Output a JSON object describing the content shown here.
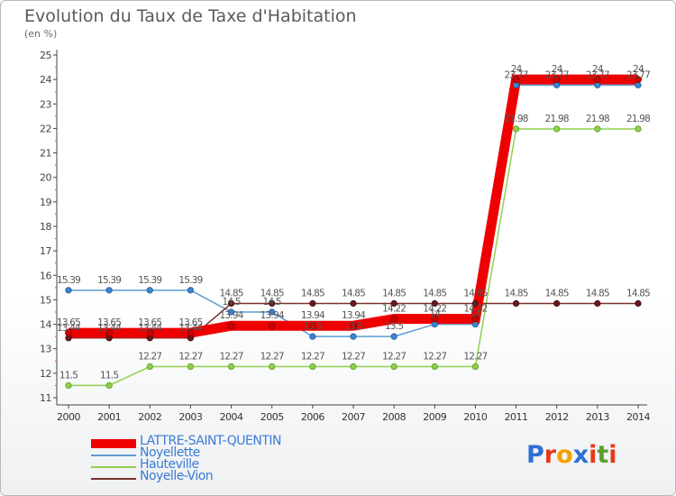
{
  "title": "Evolution du Taux de Taxe d'Habitation",
  "unit": "(en %)",
  "chart_data": {
    "type": "line",
    "title": "Evolution du Taux de Taxe d'Habitation",
    "ylabel": "(en %)",
    "xlabel": "",
    "ylim": [
      11,
      25
    ],
    "yticks": [
      11,
      12,
      13,
      14,
      15,
      16,
      17,
      18,
      19,
      20,
      21,
      22,
      23,
      24,
      25
    ],
    "grid": false,
    "legend_position": "bottom-left",
    "x": [
      "2000",
      "2001",
      "2002",
      "2003",
      "2004",
      "2005",
      "2006",
      "2007",
      "2008",
      "2009",
      "2010",
      "2011",
      "2012",
      "2013",
      "2014"
    ],
    "series": [
      {
        "name": "LATTRE-SAINT-QUENTIN",
        "color": "#ee0000",
        "values": [
          13.65,
          13.65,
          13.65,
          13.65,
          13.94,
          13.94,
          13.94,
          13.94,
          14.22,
          14.22,
          14.22,
          24,
          24,
          24,
          24
        ],
        "labels": [
          "13.65",
          "13.65",
          "13.65",
          "13.65",
          "13.94",
          "13.94",
          "13.94",
          "13.94",
          "14.22",
          "14.22",
          "14.22",
          "24",
          "24",
          "24",
          "24"
        ]
      },
      {
        "name": "Noyellette",
        "color": "#5b9bd5",
        "values": [
          15.39,
          15.39,
          15.39,
          15.39,
          14.5,
          14.5,
          13.5,
          13.5,
          13.5,
          14,
          14,
          23.77,
          23.77,
          23.77,
          23.77
        ],
        "labels": [
          "15.39",
          "15.39",
          "15.39",
          "15.39",
          "14.5",
          "14.5",
          "13.5",
          "13.5",
          "13.5",
          "14",
          "14",
          "23.77",
          "23.77",
          "23.77",
          "23.77"
        ]
      },
      {
        "name": "Hauteville",
        "color": "#92d050",
        "values": [
          11.5,
          11.5,
          12.27,
          12.27,
          12.27,
          12.27,
          12.27,
          12.27,
          12.27,
          12.27,
          12.27,
          21.98,
          21.98,
          21.98,
          21.98
        ],
        "labels": [
          "11.5",
          "11.5",
          "12.27",
          "12.27",
          "12.27",
          "12.27",
          "12.27",
          "12.27",
          "12.27",
          "12.27",
          "12.27",
          "21.98",
          "21.98",
          "21.98",
          "21.98"
        ]
      },
      {
        "name": "Noyelle-Vion",
        "color": "#7b3030",
        "values": [
          13.44,
          13.44,
          13.44,
          13.44,
          14.85,
          14.85,
          14.85,
          14.85,
          14.85,
          14.85,
          14.85,
          14.85,
          14.85,
          14.85,
          14.85
        ],
        "labels": [
          "13.44",
          "13.44",
          "13.44",
          "13.44",
          "14.85",
          "14.85",
          "14.85",
          "14.85",
          "14.85",
          "14.85",
          "14.85",
          "14.85",
          "14.85",
          "14.85",
          "14.85"
        ]
      }
    ]
  },
  "legend": [
    {
      "label": "LATTRE-SAINT-QUENTIN",
      "color": "#ee0000"
    },
    {
      "label": "Noyellette",
      "color": "#5b9bd5"
    },
    {
      "label": "Hauteville",
      "color": "#92d050"
    },
    {
      "label": "Noyelle-Vion",
      "color": "#7b3030"
    }
  ],
  "logo": {
    "letters": [
      "P",
      "r",
      "o",
      "x",
      "i",
      "t",
      "i"
    ],
    "colors": [
      "#2f6fd0",
      "#e83a1a",
      "#f5a100",
      "#2f6fd0",
      "#e83a1a",
      "#5aa02c",
      "#e83a1a"
    ]
  }
}
